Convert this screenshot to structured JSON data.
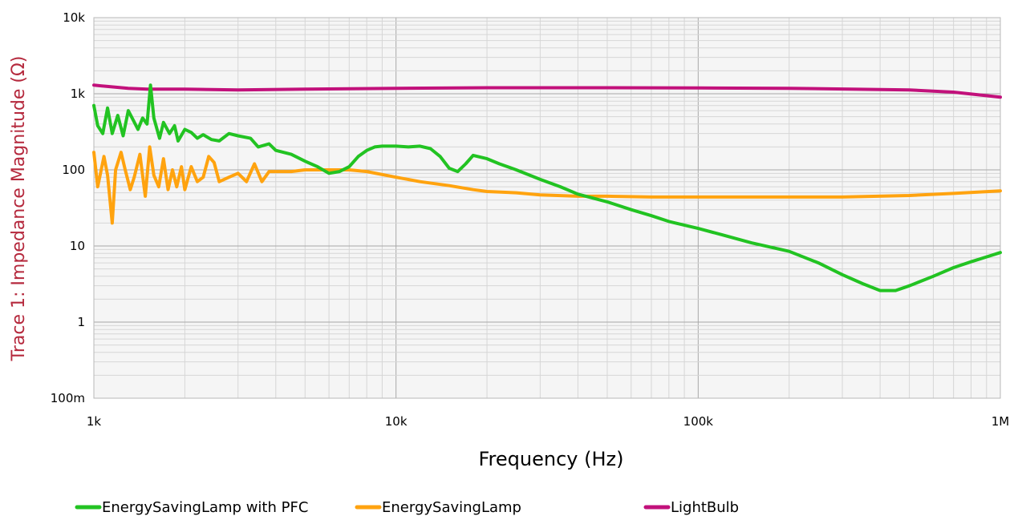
{
  "chart_data": {
    "type": "line",
    "xlabel": "Frequency (Hz)",
    "ylabel": "Trace 1: Impedance Magnitude (Ω)",
    "x_scale": "log",
    "y_scale": "log",
    "xlim": [
      1000,
      1000000
    ],
    "ylim": [
      0.1,
      10000
    ],
    "grid": true,
    "legend_position": "bottom",
    "x_ticks": [
      {
        "value": 1000,
        "label": "1k"
      },
      {
        "value": 10000,
        "label": "10k"
      },
      {
        "value": 100000,
        "label": "100k"
      },
      {
        "value": 1000000,
        "label": "1M"
      }
    ],
    "y_ticks": [
      {
        "value": 10000,
        "label": "10k"
      },
      {
        "value": 1000,
        "label": "1k"
      },
      {
        "value": 100,
        "label": "100"
      },
      {
        "value": 10,
        "label": "10"
      },
      {
        "value": 1,
        "label": "1"
      },
      {
        "value": 0.1,
        "label": "100m"
      }
    ],
    "series": [
      {
        "name": "EnergySavingLamp with PFC",
        "color": "#22c322",
        "points": [
          [
            1000,
            700
          ],
          [
            1030,
            380
          ],
          [
            1070,
            300
          ],
          [
            1110,
            650
          ],
          [
            1150,
            300
          ],
          [
            1200,
            520
          ],
          [
            1250,
            280
          ],
          [
            1300,
            600
          ],
          [
            1350,
            450
          ],
          [
            1400,
            340
          ],
          [
            1450,
            480
          ],
          [
            1500,
            400
          ],
          [
            1540,
            1300
          ],
          [
            1580,
            480
          ],
          [
            1650,
            260
          ],
          [
            1700,
            420
          ],
          [
            1780,
            300
          ],
          [
            1850,
            380
          ],
          [
            1900,
            240
          ],
          [
            2000,
            340
          ],
          [
            2100,
            310
          ],
          [
            2200,
            260
          ],
          [
            2300,
            290
          ],
          [
            2450,
            250
          ],
          [
            2600,
            240
          ],
          [
            2800,
            300
          ],
          [
            3000,
            280
          ],
          [
            3300,
            260
          ],
          [
            3500,
            200
          ],
          [
            3800,
            220
          ],
          [
            4000,
            180
          ],
          [
            4500,
            160
          ],
          [
            5000,
            130
          ],
          [
            5500,
            110
          ],
          [
            6000,
            90
          ],
          [
            6500,
            95
          ],
          [
            7000,
            110
          ],
          [
            7500,
            150
          ],
          [
            8000,
            180
          ],
          [
            8500,
            200
          ],
          [
            9000,
            205
          ],
          [
            10000,
            205
          ],
          [
            11000,
            200
          ],
          [
            12000,
            205
          ],
          [
            13000,
            190
          ],
          [
            14000,
            150
          ],
          [
            15000,
            105
          ],
          [
            16000,
            95
          ],
          [
            17000,
            120
          ],
          [
            18000,
            155
          ],
          [
            20000,
            140
          ],
          [
            22000,
            120
          ],
          [
            25000,
            100
          ],
          [
            30000,
            75
          ],
          [
            35000,
            60
          ],
          [
            40000,
            48
          ],
          [
            50000,
            38
          ],
          [
            60000,
            30
          ],
          [
            70000,
            25
          ],
          [
            80000,
            21
          ],
          [
            100000,
            17
          ],
          [
            120000,
            14
          ],
          [
            150000,
            11
          ],
          [
            200000,
            8.5
          ],
          [
            250000,
            6
          ],
          [
            300000,
            4.2
          ],
          [
            350000,
            3.2
          ],
          [
            400000,
            2.6
          ],
          [
            450000,
            2.6
          ],
          [
            500000,
            3.0
          ],
          [
            600000,
            4.0
          ],
          [
            700000,
            5.2
          ],
          [
            800000,
            6.2
          ],
          [
            900000,
            7.2
          ],
          [
            1000000,
            8.2
          ]
        ]
      },
      {
        "name": "EnergySavingLamp",
        "color": "#ffa30f",
        "points": [
          [
            1000,
            170
          ],
          [
            1030,
            60
          ],
          [
            1080,
            150
          ],
          [
            1110,
            85
          ],
          [
            1150,
            20
          ],
          [
            1180,
            100
          ],
          [
            1230,
            170
          ],
          [
            1270,
            100
          ],
          [
            1320,
            55
          ],
          [
            1360,
            80
          ],
          [
            1420,
            160
          ],
          [
            1480,
            45
          ],
          [
            1530,
            200
          ],
          [
            1580,
            85
          ],
          [
            1640,
            60
          ],
          [
            1700,
            140
          ],
          [
            1760,
            55
          ],
          [
            1820,
            100
          ],
          [
            1880,
            60
          ],
          [
            1950,
            110
          ],
          [
            2000,
            55
          ],
          [
            2100,
            110
          ],
          [
            2200,
            70
          ],
          [
            2300,
            80
          ],
          [
            2400,
            150
          ],
          [
            2500,
            125
          ],
          [
            2600,
            70
          ],
          [
            2800,
            80
          ],
          [
            3000,
            90
          ],
          [
            3200,
            70
          ],
          [
            3400,
            120
          ],
          [
            3600,
            70
          ],
          [
            3800,
            95
          ],
          [
            4000,
            95
          ],
          [
            4500,
            95
          ],
          [
            5000,
            100
          ],
          [
            6000,
            100
          ],
          [
            7000,
            100
          ],
          [
            8000,
            95
          ],
          [
            10000,
            80
          ],
          [
            12000,
            70
          ],
          [
            15000,
            62
          ],
          [
            18000,
            55
          ],
          [
            20000,
            52
          ],
          [
            25000,
            50
          ],
          [
            30000,
            47
          ],
          [
            40000,
            45
          ],
          [
            50000,
            45
          ],
          [
            70000,
            44
          ],
          [
            100000,
            44
          ],
          [
            200000,
            44
          ],
          [
            300000,
            44
          ],
          [
            500000,
            46
          ],
          [
            700000,
            49
          ],
          [
            1000000,
            53
          ]
        ]
      },
      {
        "name": "LightBulb",
        "color": "#c2117b",
        "points": [
          [
            1000,
            1300
          ],
          [
            1100,
            1250
          ],
          [
            1300,
            1180
          ],
          [
            1500,
            1150
          ],
          [
            2000,
            1150
          ],
          [
            3000,
            1120
          ],
          [
            5000,
            1150
          ],
          [
            10000,
            1180
          ],
          [
            20000,
            1200
          ],
          [
            50000,
            1200
          ],
          [
            100000,
            1190
          ],
          [
            200000,
            1180
          ],
          [
            500000,
            1120
          ],
          [
            700000,
            1050
          ],
          [
            1000000,
            900
          ]
        ]
      }
    ]
  }
}
